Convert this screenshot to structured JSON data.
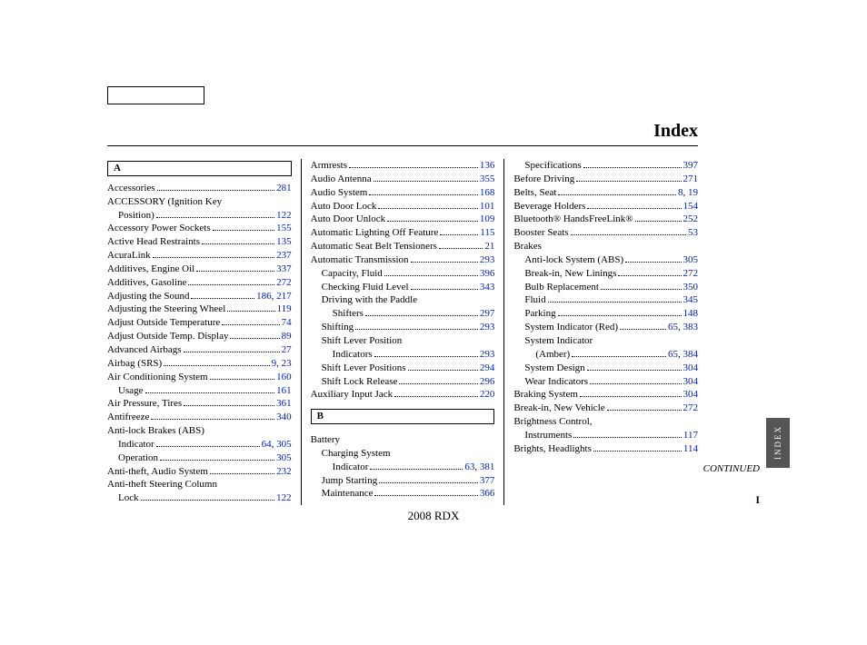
{
  "title": "Index",
  "footer": "2008  RDX",
  "continued": "CONTINUED",
  "sidetab": "INDEX",
  "pagenum": "I",
  "colors": {
    "link": "#0020c0",
    "text": "#000000",
    "tab_bg": "#555555"
  },
  "columns": [
    {
      "letter": "A",
      "entries": [
        {
          "t": "Accessories",
          "p": [
            "281"
          ]
        },
        {
          "t": "ACCESSORY (Ignition Key",
          "plain": true
        },
        {
          "t": "Position)",
          "p": [
            "122"
          ],
          "sub": 1
        },
        {
          "t": "Accessory Power Sockets",
          "p": [
            "155"
          ]
        },
        {
          "t": "Active Head Restraints",
          "p": [
            "135"
          ]
        },
        {
          "t": "AcuraLink",
          "p": [
            "237"
          ]
        },
        {
          "t": "Additives, Engine Oil",
          "p": [
            "337"
          ]
        },
        {
          "t": "Additives, Gasoline",
          "p": [
            "272"
          ]
        },
        {
          "t": "Adjusting the Sound",
          "p": [
            "186",
            "217"
          ]
        },
        {
          "t": "Adjusting the Steering Wheel",
          "p": [
            "119"
          ]
        },
        {
          "t": "Adjust Outside Temperature",
          "p": [
            "74"
          ]
        },
        {
          "t": "Adjust Outside Temp. Display",
          "p": [
            "89"
          ]
        },
        {
          "t": "Advanced Airbags",
          "p": [
            "27"
          ]
        },
        {
          "t": "Airbag (SRS)",
          "p": [
            "9",
            "23"
          ]
        },
        {
          "t": "Air Conditioning System",
          "p": [
            "160"
          ]
        },
        {
          "t": "Usage",
          "p": [
            "161"
          ],
          "sub": 1
        },
        {
          "t": "Air Pressure, Tires",
          "p": [
            "361"
          ]
        },
        {
          "t": "Antifreeze",
          "p": [
            "340"
          ]
        },
        {
          "t": "Anti-lock Brakes (ABS)",
          "plain": true
        },
        {
          "t": "Indicator",
          "p": [
            "64",
            "305"
          ],
          "sub": 1
        },
        {
          "t": "Operation",
          "p": [
            "305"
          ],
          "sub": 1
        },
        {
          "t": "Anti-theft, Audio System",
          "p": [
            "232"
          ]
        },
        {
          "t": "Anti-theft Steering Column",
          "plain": true
        },
        {
          "t": "Lock",
          "p": [
            "122"
          ],
          "sub": 1
        }
      ]
    },
    {
      "entries": [
        {
          "t": "Armrests",
          "p": [
            "136"
          ]
        },
        {
          "t": "Audio Antenna",
          "p": [
            "355"
          ]
        },
        {
          "t": "Audio System",
          "p": [
            "168"
          ]
        },
        {
          "t": "Auto Door Lock",
          "p": [
            "101"
          ]
        },
        {
          "t": "Auto Door Unlock",
          "p": [
            "109"
          ]
        },
        {
          "t": "Automatic Lighting Off Feature",
          "p": [
            "115"
          ]
        },
        {
          "t": "Automatic Seat Belt Tensioners",
          "p": [
            "21"
          ]
        },
        {
          "t": "Automatic Transmission",
          "p": [
            "293"
          ]
        },
        {
          "t": "Capacity, Fluid",
          "p": [
            "396"
          ],
          "sub": 1
        },
        {
          "t": "Checking Fluid Level",
          "p": [
            "343"
          ],
          "sub": 1
        },
        {
          "t": "Driving with the Paddle",
          "plain": true,
          "sub": 1
        },
        {
          "t": "Shifters",
          "p": [
            "297"
          ],
          "sub": 2
        },
        {
          "t": "Shifting",
          "p": [
            "293"
          ],
          "sub": 1
        },
        {
          "t": "Shift Lever Position",
          "plain": true,
          "sub": 1
        },
        {
          "t": "Indicators",
          "p": [
            "293"
          ],
          "sub": 2
        },
        {
          "t": "Shift Lever Positions",
          "p": [
            "294"
          ],
          "sub": 1
        },
        {
          "t": "Shift Lock Release",
          "p": [
            "296"
          ],
          "sub": 1
        },
        {
          "t": "Auxiliary Input Jack",
          "p": [
            "220"
          ]
        }
      ],
      "letter_after": "B",
      "entries_after": [
        {
          "t": "Battery",
          "plain": true
        },
        {
          "t": "Charging System",
          "plain": true,
          "sub": 1
        },
        {
          "t": "Indicator",
          "p": [
            "63",
            "381"
          ],
          "sub": 2
        },
        {
          "t": "Jump Starting",
          "p": [
            "377"
          ],
          "sub": 1
        },
        {
          "t": "Maintenance",
          "p": [
            "366"
          ],
          "sub": 1
        }
      ]
    },
    {
      "entries": [
        {
          "t": "Specifications",
          "p": [
            "397"
          ],
          "sub": 1
        },
        {
          "t": "Before Driving",
          "p": [
            "271"
          ]
        },
        {
          "t": "Belts, Seat",
          "p": [
            "8",
            "19"
          ]
        },
        {
          "t": "Beverage Holders",
          "p": [
            "154"
          ]
        },
        {
          "t": "Bluetooth® HandsFreeLink®",
          "p": [
            "252"
          ]
        },
        {
          "t": "Booster Seats",
          "p": [
            "53"
          ]
        },
        {
          "t": "Brakes",
          "plain": true
        },
        {
          "t": "Anti-lock System (ABS)",
          "p": [
            "305"
          ],
          "sub": 1
        },
        {
          "t": "Break-in, New Linings",
          "p": [
            "272"
          ],
          "sub": 1
        },
        {
          "t": "Bulb Replacement",
          "p": [
            "350"
          ],
          "sub": 1
        },
        {
          "t": "Fluid",
          "p": [
            "345"
          ],
          "sub": 1
        },
        {
          "t": "Parking",
          "p": [
            "148"
          ],
          "sub": 1
        },
        {
          "t": "System Indicator (Red)",
          "p": [
            "65",
            "383"
          ],
          "sub": 1
        },
        {
          "t": "System Indicator",
          "plain": true,
          "sub": 1
        },
        {
          "t": "(Amber)",
          "p": [
            "65",
            "384"
          ],
          "sub": 2
        },
        {
          "t": "System Design",
          "p": [
            "304"
          ],
          "sub": 1
        },
        {
          "t": "Wear Indicators",
          "p": [
            "304"
          ],
          "sub": 1
        },
        {
          "t": "Braking System",
          "p": [
            "304"
          ]
        },
        {
          "t": "Break-in, New Vehicle",
          "p": [
            "272"
          ]
        },
        {
          "t": "Brightness Control,",
          "plain": true
        },
        {
          "t": "Instruments",
          "p": [
            "117"
          ],
          "sub": 1
        },
        {
          "t": "Brights, Headlights",
          "p": [
            "114"
          ]
        }
      ]
    }
  ]
}
